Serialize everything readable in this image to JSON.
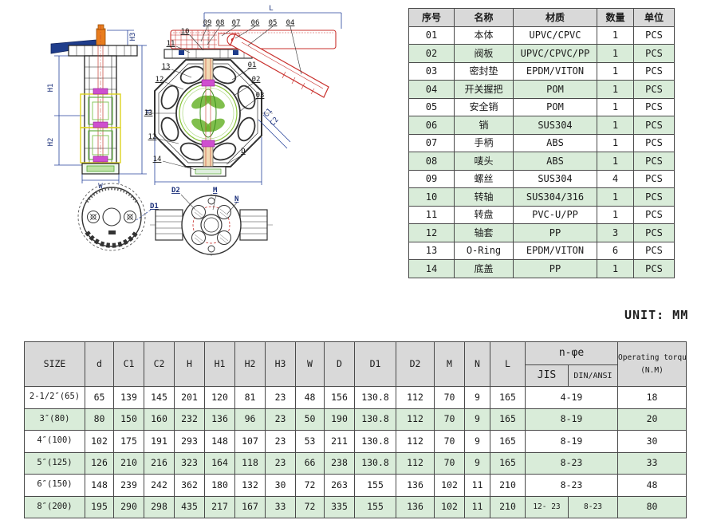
{
  "unit_label": "UNIT: MM",
  "colors": {
    "row_green": "#d9ecd9",
    "header_gray": "#d9d9d9",
    "handle_red": "#c9302c",
    "dimension_blue": "#1a2f7a",
    "disc_green": "#6ab42e",
    "bushing_yellow": "#ddd31e",
    "seal_magenta": "#cf4fcf",
    "shaft_orange": "#e87d1e"
  },
  "drawing": {
    "side_view": {
      "h3": "H3",
      "h1": "H1",
      "h2": "H2",
      "h": "H",
      "w": "W"
    },
    "front_view": {
      "l": "L",
      "top_callouts": [
        "09",
        "08",
        "07",
        "06",
        "05",
        "04"
      ],
      "left_callouts": [
        "10",
        "11",
        "13",
        "12",
        "13",
        "12",
        "14"
      ],
      "right_callouts": [
        "01",
        "02",
        "03"
      ],
      "c1": "C1",
      "c2": "C2",
      "d": "D"
    },
    "bottom_left_view": {
      "d1": "D1"
    },
    "bottom_view": {
      "d2": "D2",
      "m": "M",
      "n": "N"
    }
  },
  "parts_table": {
    "headers": [
      "序号",
      "名称",
      "材质",
      "数量",
      "单位"
    ],
    "rows": [
      [
        "01",
        "本体",
        "UPVC/CPVC",
        "1",
        "PCS"
      ],
      [
        "02",
        "阀板",
        "UPVC/CPVC/PP",
        "1",
        "PCS"
      ],
      [
        "03",
        "密封垫",
        "EPDM/VITON",
        "1",
        "PCS"
      ],
      [
        "04",
        "开关握把",
        "POM",
        "1",
        "PCS"
      ],
      [
        "05",
        "安全销",
        "POM",
        "1",
        "PCS"
      ],
      [
        "06",
        "销",
        "SUS304",
        "1",
        "PCS"
      ],
      [
        "07",
        "手柄",
        "ABS",
        "1",
        "PCS"
      ],
      [
        "08",
        "唛头",
        "ABS",
        "1",
        "PCS"
      ],
      [
        "09",
        "螺丝",
        "SUS304",
        "4",
        "PCS"
      ],
      [
        "10",
        "转轴",
        "SUS304/316",
        "1",
        "PCS"
      ],
      [
        "11",
        "转盘",
        "PVC-U/PP",
        "1",
        "PCS"
      ],
      [
        "12",
        "轴套",
        "PP",
        "3",
        "PCS"
      ],
      [
        "13",
        "O-Ring",
        "EPDM/VITON",
        "6",
        "PCS"
      ],
      [
        "14",
        "底盖",
        "PP",
        "1",
        "PCS"
      ]
    ]
  },
  "dimensions_table": {
    "headers": [
      "SIZE",
      "d",
      "C1",
      "C2",
      "H",
      "H1",
      "H2",
      "H3",
      "W",
      "D",
      "D1",
      "D2",
      "M",
      "N",
      "L"
    ],
    "bolt_header": "n-φe",
    "bolt_subheaders": [
      "JIS",
      "DIN/ANSI"
    ],
    "torque_header": "Operating torque",
    "torque_subheader": "(N.M)",
    "rows": [
      {
        "size": "2-1/2″(65)",
        "dims": [
          "65",
          "139",
          "145",
          "201",
          "120",
          "81",
          "23",
          "48",
          "156",
          "130.8",
          "112",
          "70",
          "9",
          "165"
        ],
        "jis": "4-19",
        "din_ansi": null,
        "torque": "18"
      },
      {
        "size": "3″(80)",
        "dims": [
          "80",
          "150",
          "160",
          "232",
          "136",
          "96",
          "23",
          "50",
          "190",
          "130.8",
          "112",
          "70",
          "9",
          "165"
        ],
        "jis": "8-19",
        "din_ansi": null,
        "torque": "20"
      },
      {
        "size": "4″(100)",
        "dims": [
          "102",
          "175",
          "191",
          "293",
          "148",
          "107",
          "23",
          "53",
          "211",
          "130.8",
          "112",
          "70",
          "9",
          "165"
        ],
        "jis": "8-19",
        "din_ansi": null,
        "torque": "30"
      },
      {
        "size": "5″(125)",
        "dims": [
          "126",
          "210",
          "216",
          "323",
          "164",
          "118",
          "23",
          "66",
          "238",
          "130.8",
          "112",
          "70",
          "9",
          "165"
        ],
        "jis": "8-23",
        "din_ansi": null,
        "torque": "33"
      },
      {
        "size": "6″(150)",
        "dims": [
          "148",
          "239",
          "242",
          "362",
          "180",
          "132",
          "30",
          "72",
          "263",
          "155",
          "136",
          "102",
          "11",
          "210"
        ],
        "jis": "8-23",
        "din_ansi": null,
        "torque": "48"
      },
      {
        "size": "8″(200)",
        "dims": [
          "195",
          "290",
          "298",
          "435",
          "217",
          "167",
          "33",
          "72",
          "335",
          "155",
          "136",
          "102",
          "11",
          "210"
        ],
        "jis": "12- 23",
        "din_ansi": "8-23",
        "torque": "80"
      }
    ]
  }
}
